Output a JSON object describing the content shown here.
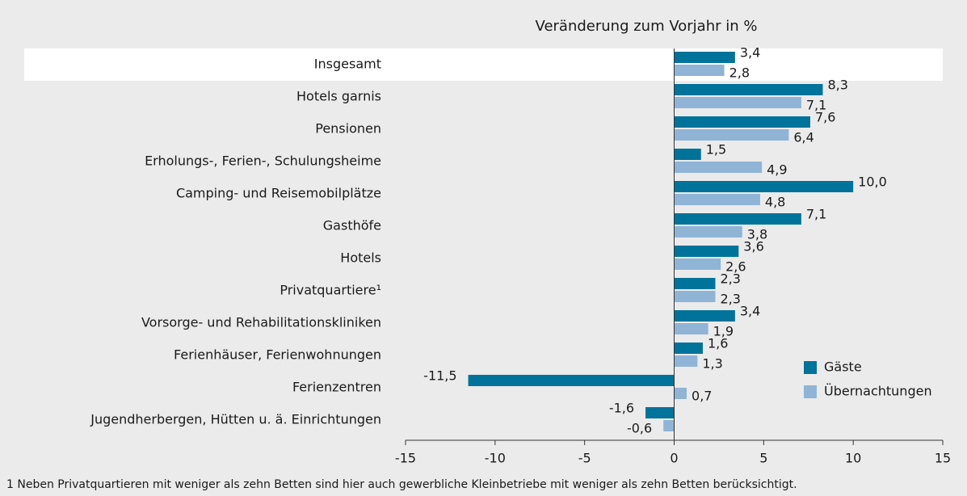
{
  "chart_data": {
    "type": "bar",
    "orientation": "horizontal",
    "title": "Veränderung zum Vorjahr in %",
    "categories": [
      "Insgesamt",
      "Hotels garnis",
      "Pensionen",
      "Erholungs-, Ferien-, Schulungsheime",
      "Camping- und Reisemobilplätze",
      "Gasthöfe",
      "Hotels",
      "Privatquartiere¹",
      "Vorsorge- und Rehabilitationskliniken",
      "Ferienhäuser, Ferienwohnungen",
      "Ferienzentren",
      "Jugendherbergen, Hütten u. ä. Einrichtungen"
    ],
    "series": [
      {
        "name": "Gäste",
        "color": "#00739a",
        "values": [
          3.4,
          8.3,
          7.6,
          1.5,
          10.0,
          7.1,
          3.6,
          2.3,
          3.4,
          1.6,
          -11.5,
          -1.6
        ],
        "value_labels": [
          "3,4",
          "8,3",
          "7,6",
          "1,5",
          "10,0",
          "7,1",
          "3,6",
          "2,3",
          "3,4",
          "1,6",
          "-11,5",
          "-1,6"
        ]
      },
      {
        "name": "Übernachtungen",
        "color": "#8fb4d6",
        "values": [
          2.8,
          7.1,
          6.4,
          4.9,
          4.8,
          3.8,
          2.6,
          2.3,
          1.9,
          1.3,
          0.7,
          -0.6
        ],
        "value_labels": [
          "2,8",
          "7,1",
          "6,4",
          "4,9",
          "4,8",
          "3,8",
          "2,6",
          "2,3",
          "1,9",
          "1,3",
          "0,7",
          "-0,6"
        ]
      }
    ],
    "xlim": [
      -15,
      15
    ],
    "xticks": [
      -15,
      -10,
      -5,
      0,
      5,
      10,
      15
    ],
    "legend": "lower right",
    "footnote": "1 Neben Privatquartieren mit weniger als zehn Betten sind hier auch gewerbliche Kleinbetriebe mit weniger als zehn Betten berücksichtigt."
  }
}
